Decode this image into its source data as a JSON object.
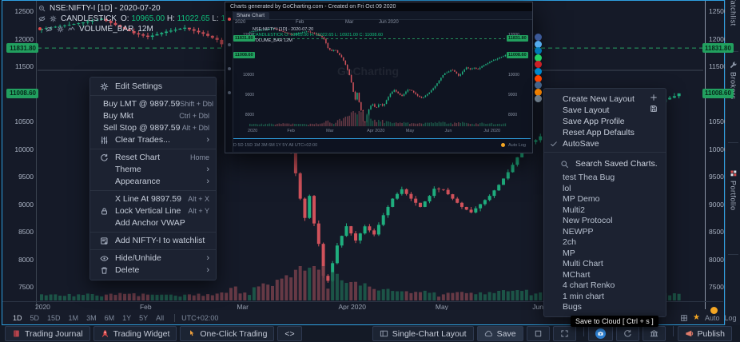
{
  "header": {
    "symbol_line": "NSE:NIFTY-I [1D] - 2020-07-20",
    "study1_name": "CANDLESTICK",
    "ohlc": {
      "o_label": "O:",
      "o": "10965.00",
      "h_label": "H:",
      "h": "11022.65",
      "l_label": "L:",
      "l": "10921.00",
      "c_label": "C:",
      "c": "11008.60"
    },
    "study2_name": "VOLUME_BAR",
    "study2_value": "12M"
  },
  "chart_data": {
    "type": "candlestick",
    "symbol": "NSE:NIFTY-I",
    "interval": "1D",
    "date": "2020-07-20",
    "last": {
      "open": 10965.0,
      "high": 11022.65,
      "low": 10921.0,
      "close": 11008.6
    },
    "levels": [
      {
        "price": 11831.8,
        "label": "11831.80",
        "style": "dashed"
      },
      {
        "price": 11008.6,
        "label": "11008.60",
        "style": "last"
      }
    ],
    "y_ticks": [
      12500,
      12000,
      11500,
      11000,
      10500,
      10000,
      9500,
      9000,
      8500,
      8000,
      7500
    ],
    "x_labels": [
      {
        "label": "2020",
        "day": 0
      },
      {
        "label": "Feb",
        "day": 23
      },
      {
        "label": "Mar",
        "day": 44
      },
      {
        "label": "Apr 2020",
        "day": 66
      },
      {
        "label": "May",
        "day": 87
      },
      {
        "label": "Jun",
        "day": 108
      }
    ],
    "mini_extra_x_labels": [
      {
        "label": "Jul 2020",
        "day": 129
      }
    ],
    "days_total": 138,
    "close_anchors": [
      [
        0,
        12180
      ],
      [
        8,
        12280
      ],
      [
        13,
        12360
      ],
      [
        16,
        12250
      ],
      [
        20,
        12100
      ],
      [
        23,
        12035
      ],
      [
        27,
        12130
      ],
      [
        31,
        12200
      ],
      [
        35,
        12090
      ],
      [
        38,
        11980
      ],
      [
        40,
        11820
      ],
      [
        41,
        11630
      ],
      [
        42,
        11380
      ],
      [
        44,
        11202
      ],
      [
        46,
        11300
      ],
      [
        48,
        11050
      ],
      [
        50,
        10850
      ],
      [
        52,
        10450
      ],
      [
        54,
        9950
      ],
      [
        55,
        9560
      ],
      [
        56,
        9100
      ],
      [
        57,
        8750
      ],
      [
        58,
        9150
      ],
      [
        59,
        8650
      ],
      [
        60,
        8280
      ],
      [
        61,
        7700
      ],
      [
        62,
        7610
      ],
      [
        64,
        8250
      ],
      [
        66,
        8600
      ],
      [
        68,
        8340
      ],
      [
        70,
        8598
      ],
      [
        72,
        8450
      ],
      [
        74,
        8800
      ],
      [
        76,
        9100
      ],
      [
        78,
        9270
      ],
      [
        80,
        9100
      ],
      [
        82,
        8950
      ],
      [
        84,
        9150
      ],
      [
        85,
        9280
      ],
      [
        87,
        9260
      ],
      [
        89,
        9100
      ],
      [
        91,
        8950
      ],
      [
        93,
        8850
      ],
      [
        95,
        9000
      ],
      [
        97,
        9150
      ],
      [
        99,
        9350
      ],
      [
        101,
        9580
      ],
      [
        103,
        9850
      ],
      [
        105,
        10100
      ],
      [
        107,
        10160
      ],
      [
        109,
        10300
      ],
      [
        111,
        10150
      ],
      [
        113,
        9950
      ],
      [
        115,
        10200
      ],
      [
        117,
        10400
      ],
      [
        119,
        10300
      ],
      [
        121,
        10383
      ],
      [
        123,
        10290
      ],
      [
        125,
        10430
      ],
      [
        127,
        10550
      ],
      [
        129,
        10620
      ],
      [
        131,
        10750
      ],
      [
        133,
        10800
      ],
      [
        135,
        10900
      ],
      [
        137,
        10960
      ],
      [
        138,
        11008.6
      ]
    ]
  },
  "timeframe_bar": {
    "items": [
      "1D",
      "5D",
      "15D",
      "1M",
      "3M",
      "6M",
      "1Y",
      "5Y",
      "All"
    ],
    "active": "1D",
    "timezone": "UTC+02:00",
    "auto": "Auto",
    "log": "Log"
  },
  "context_menu": {
    "submenu_glyph": "›",
    "sections": [
      {
        "items": [
          {
            "icon": "gear-icon",
            "label": "Edit Settings"
          }
        ]
      },
      {
        "items": [
          {
            "label": "Buy LMT @ 9897.59",
            "shortcut": "Shift + Dbl",
            "flush": true
          },
          {
            "label": "Buy Mkt",
            "shortcut": "Ctrl + Dbl",
            "flush": true
          },
          {
            "label": "Sell Stop @ 9897.59",
            "shortcut": "Alt + Dbl",
            "flush": true
          },
          {
            "icon": "sliders-icon",
            "label": "Clear Trades...",
            "submenu": true
          }
        ]
      },
      {
        "items": [
          {
            "icon": "reset-icon",
            "label": "Reset Chart",
            "shortcut": "Home"
          },
          {
            "label": "Theme",
            "submenu": true
          },
          {
            "label": "Appearance",
            "submenu": true
          }
        ]
      },
      {
        "items": [
          {
            "label": "X Line At 9897.59",
            "shortcut": "Alt + X"
          },
          {
            "icon": "lock-icon",
            "label": "Lock Vertical Line",
            "shortcut": "Alt + Y"
          },
          {
            "label": "Add Anchor VWAP"
          }
        ]
      },
      {
        "items": [
          {
            "icon": "watchlist-add-icon",
            "label": "Add NIFTY-I to watchlist"
          }
        ]
      },
      {
        "items": [
          {
            "icon": "eye-icon",
            "label": "Hide/Unhide",
            "submenu": true
          },
          {
            "icon": "trash-icon",
            "label": "Delete",
            "submenu": true
          }
        ]
      }
    ]
  },
  "layout_menu": {
    "items": [
      {
        "label": "Create New Layout",
        "right_icon": "plus-icon"
      },
      {
        "label": "Save Layout",
        "right_icon": "floppy-icon"
      },
      {
        "label": "Save App Profile"
      },
      {
        "label": "Reset App Defaults"
      },
      {
        "label": "AutoSave",
        "left_icon": "check-icon"
      }
    ],
    "search_placeholder": "Search Saved Charts.",
    "saved_charts": [
      "test Thea Bug",
      "lol",
      "MP Demo",
      "Multi2",
      "New Protocol",
      "NEWPP",
      "2ch",
      "MP",
      "Multi Chart",
      "MChart",
      "4 chart Renko",
      "1 min chart",
      "Bugs"
    ]
  },
  "overlay": {
    "title": "Charts generated by GoCharting.com - Created on Fri Oct 09 2020",
    "tab": "Share Chart",
    "watermark": "GoCharting",
    "top_strip_labels": [
      "2020",
      "Feb",
      "Mar",
      "Jun 2020"
    ]
  },
  "share_icons": [
    {
      "name": "facebook-share-icon",
      "color": "#3b5998"
    },
    {
      "name": "twitter-share-icon",
      "color": "#55acee"
    },
    {
      "name": "linkedin-share-icon",
      "color": "#0077b5"
    },
    {
      "name": "whatsapp-share-icon",
      "color": "#25d366"
    },
    {
      "name": "pinterest-share-icon",
      "color": "#cb2027"
    },
    {
      "name": "telegram-share-icon",
      "color": "#0088cc"
    },
    {
      "name": "reddit-share-icon",
      "color": "#ff4500"
    },
    {
      "name": "vk-share-icon",
      "color": "#45668e"
    },
    {
      "name": "blogger-share-icon",
      "color": "#ff8800"
    },
    {
      "name": "email-share-icon",
      "color": "#7a8b9a"
    }
  ],
  "tooltip": "Save to Cloud [ Ctrl + s ]",
  "status_bar": {
    "left": [
      {
        "icon": "journal-icon",
        "label": "Trading Journal"
      },
      {
        "icon": "rocket-icon",
        "label": "Trading Widget"
      },
      {
        "icon": "pointer-icon",
        "label": "One-Click Trading"
      },
      {
        "icon": "code-icon",
        "label": "<>"
      }
    ],
    "right": [
      {
        "icon": "layout-grid-icon",
        "label": "Single-Chart Layout"
      },
      {
        "icon": "cloud-icon",
        "label": "Save",
        "highlight": true
      },
      {
        "icon": "square-icon"
      },
      {
        "icon": "expand-icon"
      },
      {
        "icon": "camera-icon",
        "sep_before": true
      },
      {
        "icon": "refresh-icon"
      },
      {
        "icon": "bank-icon"
      },
      {
        "icon": "megaphone-icon",
        "label": "Publish",
        "sep_before": true
      }
    ]
  },
  "sidebar": {
    "tabs": [
      {
        "label": "Watchlist"
      },
      {
        "label": "Brokers",
        "icon": "wrench-icon"
      },
      {
        "label": "Portfolio",
        "icon": "portfolio-icon"
      }
    ]
  }
}
